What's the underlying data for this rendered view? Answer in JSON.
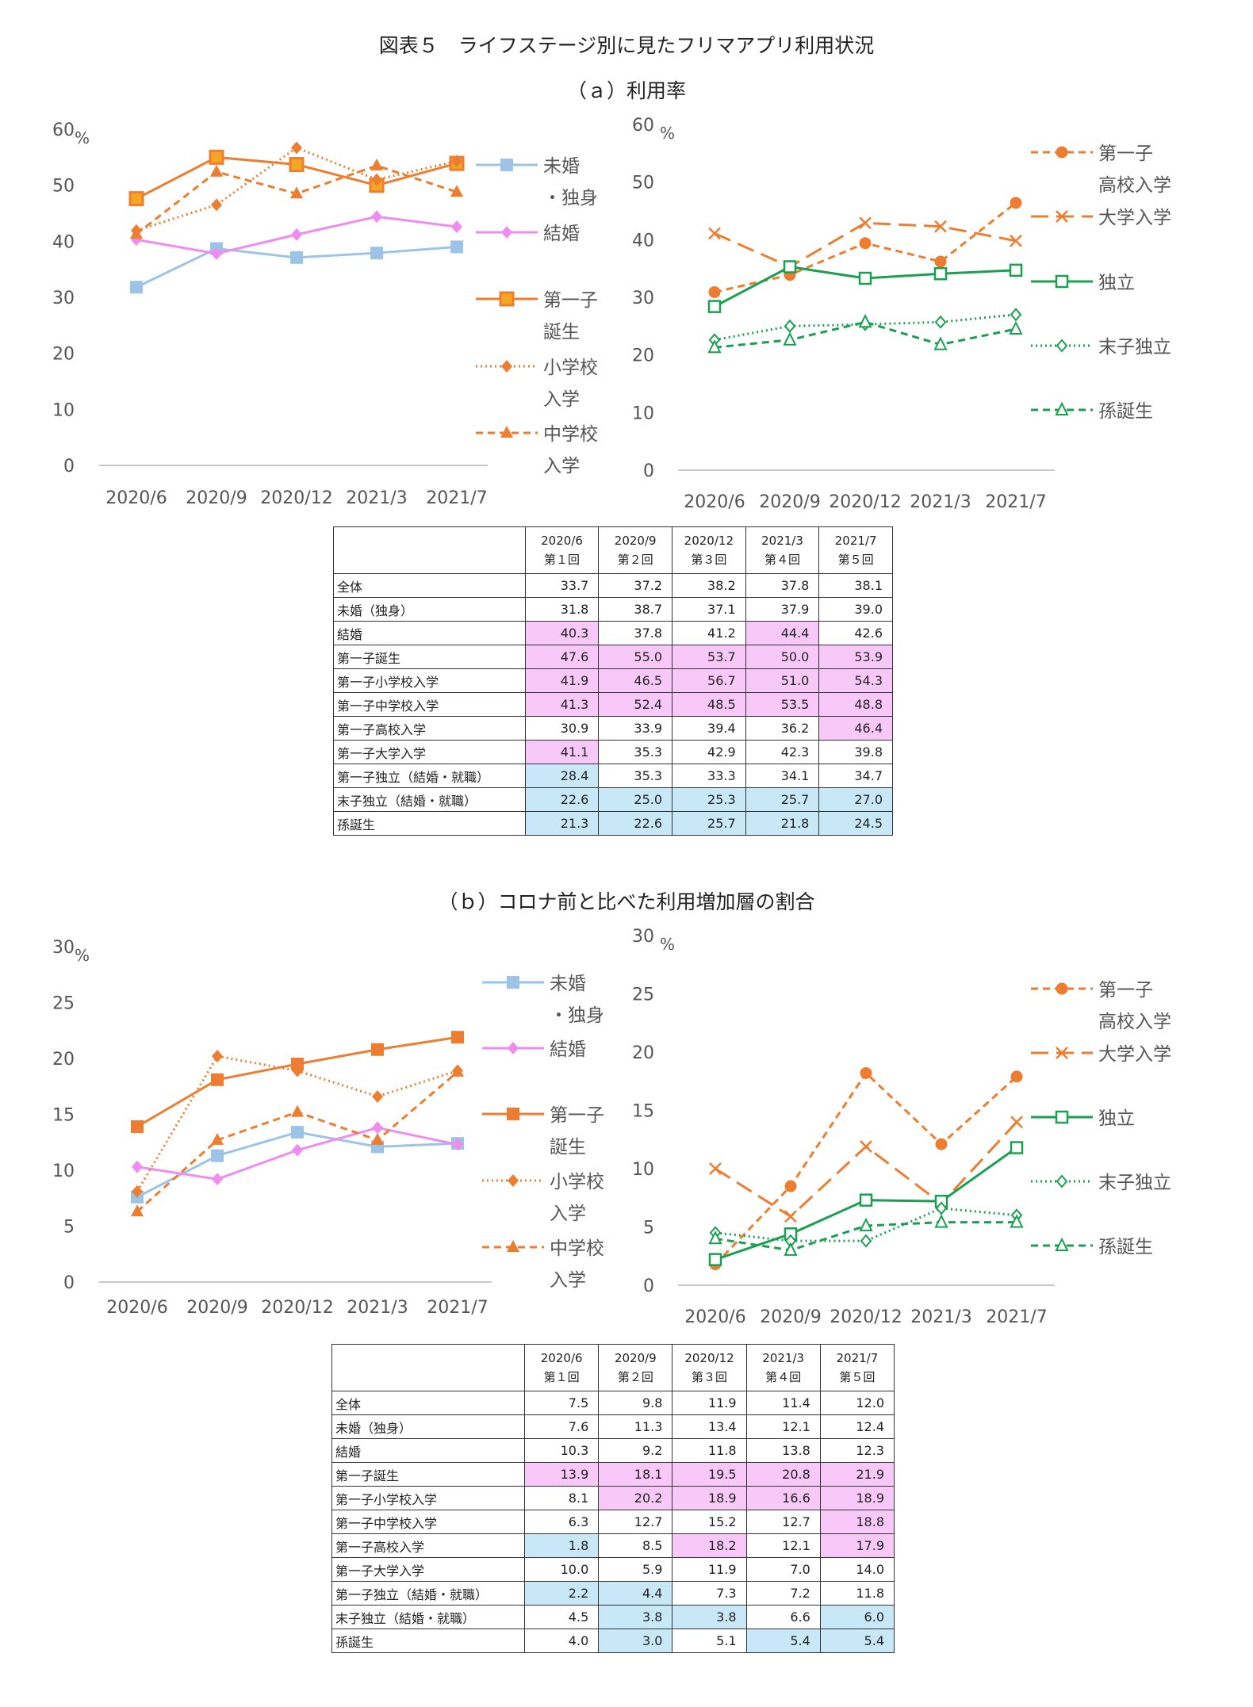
{
  "page": {
    "title": "図表５　ライフステージ別に見たフリマアプリ利用状況",
    "section_a": "（ａ）利用率",
    "section_b": "（ｂ）コロナ前と比べた利用増加層の割合"
  },
  "colors": {
    "light_blue": "#9dc3e6",
    "pink": "#f08cf0",
    "orange": "#ed7d31",
    "green": "#1aa050",
    "pink_cell": "#f8c8f8",
    "blue_cell": "#c8e8f8"
  },
  "table_header": {
    "periods": [
      "2020/6",
      "2020/9",
      "2020/12",
      "2021/3",
      "2021/7"
    ],
    "rounds": [
      "第１回",
      "第２回",
      "第３回",
      "第４回",
      "第５回"
    ]
  },
  "chart_data": [
    {
      "id": "a_left",
      "type": "line",
      "x": [
        "2020/6",
        "2020/9",
        "2020/12",
        "2021/3",
        "2021/7"
      ],
      "ylim": [
        0,
        60
      ],
      "yticks": [
        0,
        10,
        20,
        30,
        40,
        50,
        60
      ],
      "unit": "%",
      "series": [
        {
          "name": "未婚・独身",
          "legend": [
            "未婚",
            "・独身"
          ],
          "values": [
            31.8,
            38.7,
            37.1,
            37.9,
            39.0
          ],
          "color": "#9dc3e6",
          "dash": "solid",
          "marker": "square"
        },
        {
          "name": "結婚",
          "legend": [
            "結婚"
          ],
          "values": [
            40.3,
            37.8,
            41.2,
            44.4,
            42.6
          ],
          "color": "#f08cf0",
          "dash": "solid",
          "marker": "diamond"
        },
        {
          "name": "第一子誕生",
          "legend": [
            "第一子",
            "誕生"
          ],
          "values": [
            47.6,
            55.0,
            53.7,
            50.0,
            53.9
          ],
          "color": "#ed7d31",
          "dash": "solid",
          "marker": "square-hollow-fill"
        },
        {
          "name": "小学校入学",
          "legend": [
            "小学校",
            "入学"
          ],
          "values": [
            41.9,
            46.5,
            56.7,
            51.0,
            54.3
          ],
          "color": "#ed7d31",
          "dash": "dot",
          "marker": "diamond"
        },
        {
          "name": "中学校入学",
          "legend": [
            "中学校",
            "入学"
          ],
          "values": [
            41.3,
            52.4,
            48.5,
            53.5,
            48.8
          ],
          "color": "#ed7d31",
          "dash": "dash",
          "marker": "triangle"
        }
      ]
    },
    {
      "id": "a_right",
      "type": "line",
      "x": [
        "2020/6",
        "2020/9",
        "2020/12",
        "2021/3",
        "2021/7"
      ],
      "ylim": [
        0,
        60
      ],
      "yticks": [
        0,
        10,
        20,
        30,
        40,
        50,
        60
      ],
      "unit": "%",
      "series": [
        {
          "name": "第一子高校入学",
          "legend": [
            "第一子",
            "高校入学"
          ],
          "values": [
            30.9,
            33.9,
            39.4,
            36.2,
            46.4
          ],
          "color": "#ed7d31",
          "dash": "dash",
          "marker": "circle"
        },
        {
          "name": "大学入学",
          "legend": [
            "大学入学"
          ],
          "values": [
            41.1,
            35.3,
            42.9,
            42.3,
            39.8
          ],
          "color": "#ed7d31",
          "dash": "longdash",
          "marker": "x"
        },
        {
          "name": "独立",
          "legend": [
            "独立"
          ],
          "values": [
            28.4,
            35.3,
            33.3,
            34.1,
            34.7
          ],
          "color": "#1aa050",
          "dash": "solid",
          "marker": "square-hollow"
        },
        {
          "name": "末子独立",
          "legend": [
            "末子独立"
          ],
          "values": [
            22.6,
            25.0,
            25.3,
            25.7,
            27.0
          ],
          "color": "#1aa050",
          "dash": "dot",
          "marker": "diamond-hollow"
        },
        {
          "name": "孫誕生",
          "legend": [
            "孫誕生"
          ],
          "values": [
            21.3,
            22.6,
            25.7,
            21.8,
            24.5
          ],
          "color": "#1aa050",
          "dash": "dash",
          "marker": "triangle-hollow"
        }
      ]
    },
    {
      "id": "table_a",
      "type": "table",
      "rows": [
        {
          "label": "全体",
          "values": [
            "33.7",
            "37.2",
            "38.2",
            "37.8",
            "38.1"
          ],
          "hl": [
            "",
            "",
            "",
            "",
            ""
          ]
        },
        {
          "label": "未婚（独身）",
          "values": [
            "31.8",
            "38.7",
            "37.1",
            "37.9",
            "39.0"
          ],
          "hl": [
            "",
            "",
            "",
            "",
            ""
          ]
        },
        {
          "label": "結婚",
          "values": [
            "40.3",
            "37.8",
            "41.2",
            "44.4",
            "42.6"
          ],
          "hl": [
            "pink",
            "",
            "",
            "pink",
            ""
          ]
        },
        {
          "label": "第一子誕生",
          "values": [
            "47.6",
            "55.0",
            "53.7",
            "50.0",
            "53.9"
          ],
          "hl": [
            "pink",
            "pink",
            "pink",
            "pink",
            "pink"
          ]
        },
        {
          "label": "第一子小学校入学",
          "values": [
            "41.9",
            "46.5",
            "56.7",
            "51.0",
            "54.3"
          ],
          "hl": [
            "pink",
            "pink",
            "pink",
            "pink",
            "pink"
          ]
        },
        {
          "label": "第一子中学校入学",
          "values": [
            "41.3",
            "52.4",
            "48.5",
            "53.5",
            "48.8"
          ],
          "hl": [
            "pink",
            "pink",
            "pink",
            "pink",
            "pink"
          ]
        },
        {
          "label": "第一子高校入学",
          "values": [
            "30.9",
            "33.9",
            "39.4",
            "36.2",
            "46.4"
          ],
          "hl": [
            "",
            "",
            "",
            "",
            "pink"
          ]
        },
        {
          "label": "第一子大学入学",
          "values": [
            "41.1",
            "35.3",
            "42.9",
            "42.3",
            "39.8"
          ],
          "hl": [
            "pink",
            "",
            "",
            "",
            ""
          ]
        },
        {
          "label": "第一子独立（結婚・就職）",
          "values": [
            "28.4",
            "35.3",
            "33.3",
            "34.1",
            "34.7"
          ],
          "hl": [
            "blue",
            "",
            "",
            "",
            ""
          ]
        },
        {
          "label": "末子独立（結婚・就職）",
          "values": [
            "22.6",
            "25.0",
            "25.3",
            "25.7",
            "27.0"
          ],
          "hl": [
            "blue",
            "blue",
            "blue",
            "blue",
            "blue"
          ]
        },
        {
          "label": "孫誕生",
          "values": [
            "21.3",
            "22.6",
            "25.7",
            "21.8",
            "24.5"
          ],
          "hl": [
            "blue",
            "blue",
            "blue",
            "blue",
            "blue"
          ]
        }
      ]
    },
    {
      "id": "b_left",
      "type": "line",
      "x": [
        "2020/6",
        "2020/9",
        "2020/12",
        "2021/3",
        "2021/7"
      ],
      "ylim": [
        0,
        30
      ],
      "yticks": [
        0,
        5,
        10,
        15,
        20,
        25,
        30
      ],
      "unit": "%",
      "series": [
        {
          "name": "未婚・独身",
          "legend": [
            "未婚",
            "・独身"
          ],
          "values": [
            7.6,
            11.3,
            13.4,
            12.1,
            12.4
          ],
          "color": "#9dc3e6",
          "dash": "solid",
          "marker": "square"
        },
        {
          "name": "結婚",
          "legend": [
            "結婚"
          ],
          "values": [
            10.3,
            9.2,
            11.8,
            13.8,
            12.3
          ],
          "color": "#f08cf0",
          "dash": "solid",
          "marker": "diamond"
        },
        {
          "name": "第一子誕生",
          "legend": [
            "第一子",
            "誕生"
          ],
          "values": [
            13.9,
            18.1,
            19.5,
            20.8,
            21.9
          ],
          "color": "#ed7d31",
          "dash": "solid",
          "marker": "square"
        },
        {
          "name": "小学校入学",
          "legend": [
            "小学校",
            "入学"
          ],
          "values": [
            8.1,
            20.2,
            18.9,
            16.6,
            18.9
          ],
          "color": "#ed7d31",
          "dash": "dot",
          "marker": "diamond"
        },
        {
          "name": "中学校入学",
          "legend": [
            "中学校",
            "入学"
          ],
          "values": [
            6.3,
            12.7,
            15.2,
            12.7,
            18.8
          ],
          "color": "#ed7d31",
          "dash": "dash",
          "marker": "triangle"
        }
      ]
    },
    {
      "id": "b_right",
      "type": "line",
      "x": [
        "2020/6",
        "2020/9",
        "2020/12",
        "2021/3",
        "2021/7"
      ],
      "ylim": [
        0,
        30
      ],
      "yticks": [
        0,
        5,
        10,
        15,
        20,
        25,
        30
      ],
      "unit": "%",
      "series": [
        {
          "name": "第一子高校入学",
          "legend": [
            "第一子",
            "高校入学"
          ],
          "values": [
            1.8,
            8.5,
            18.2,
            12.1,
            17.9
          ],
          "color": "#ed7d31",
          "dash": "dash",
          "marker": "circle"
        },
        {
          "name": "大学入学",
          "legend": [
            "大学入学"
          ],
          "values": [
            10.0,
            5.9,
            11.9,
            7.0,
            14.0
          ],
          "color": "#ed7d31",
          "dash": "longdash",
          "marker": "x"
        },
        {
          "name": "独立",
          "legend": [
            "独立"
          ],
          "values": [
            2.2,
            4.4,
            7.3,
            7.2,
            11.8
          ],
          "color": "#1aa050",
          "dash": "solid",
          "marker": "square-hollow"
        },
        {
          "name": "末子独立",
          "legend": [
            "末子独立"
          ],
          "values": [
            4.5,
            3.8,
            3.8,
            6.6,
            6.0
          ],
          "color": "#1aa050",
          "dash": "dot",
          "marker": "diamond-hollow"
        },
        {
          "name": "孫誕生",
          "legend": [
            "孫誕生"
          ],
          "values": [
            4.0,
            3.0,
            5.1,
            5.4,
            5.4
          ],
          "color": "#1aa050",
          "dash": "dash",
          "marker": "triangle-hollow"
        }
      ]
    },
    {
      "id": "table_b",
      "type": "table",
      "rows": [
        {
          "label": "全体",
          "values": [
            "7.5",
            "9.8",
            "11.9",
            "11.4",
            "12.0"
          ],
          "hl": [
            "",
            "",
            "",
            "",
            ""
          ]
        },
        {
          "label": "未婚（独身）",
          "values": [
            "7.6",
            "11.3",
            "13.4",
            "12.1",
            "12.4"
          ],
          "hl": [
            "",
            "",
            "",
            "",
            ""
          ]
        },
        {
          "label": "結婚",
          "values": [
            "10.3",
            "9.2",
            "11.8",
            "13.8",
            "12.3"
          ],
          "hl": [
            "",
            "",
            "",
            "",
            ""
          ]
        },
        {
          "label": "第一子誕生",
          "values": [
            "13.9",
            "18.1",
            "19.5",
            "20.8",
            "21.9"
          ],
          "hl": [
            "pink",
            "pink",
            "pink",
            "pink",
            "pink"
          ]
        },
        {
          "label": "第一子小学校入学",
          "values": [
            "8.1",
            "20.2",
            "18.9",
            "16.6",
            "18.9"
          ],
          "hl": [
            "",
            "pink",
            "pink",
            "pink",
            "pink"
          ]
        },
        {
          "label": "第一子中学校入学",
          "values": [
            "6.3",
            "12.7",
            "15.2",
            "12.7",
            "18.8"
          ],
          "hl": [
            "",
            "",
            "",
            "",
            "pink"
          ]
        },
        {
          "label": "第一子高校入学",
          "values": [
            "1.8",
            "8.5",
            "18.2",
            "12.1",
            "17.9"
          ],
          "hl": [
            "blue",
            "",
            "pink",
            "",
            "pink"
          ]
        },
        {
          "label": "第一子大学入学",
          "values": [
            "10.0",
            "5.9",
            "11.9",
            "7.0",
            "14.0"
          ],
          "hl": [
            "",
            "",
            "",
            "",
            ""
          ]
        },
        {
          "label": "第一子独立（結婚・就職）",
          "values": [
            "2.2",
            "4.4",
            "7.3",
            "7.2",
            "11.8"
          ],
          "hl": [
            "blue",
            "blue",
            "",
            "",
            ""
          ]
        },
        {
          "label": "末子独立（結婚・就職）",
          "values": [
            "4.5",
            "3.8",
            "3.8",
            "6.6",
            "6.0"
          ],
          "hl": [
            "",
            "blue",
            "blue",
            "",
            "blue"
          ]
        },
        {
          "label": "孫誕生",
          "values": [
            "4.0",
            "3.0",
            "5.1",
            "5.4",
            "5.4"
          ],
          "hl": [
            "",
            "blue",
            "",
            "blue",
            "blue"
          ]
        }
      ]
    }
  ]
}
